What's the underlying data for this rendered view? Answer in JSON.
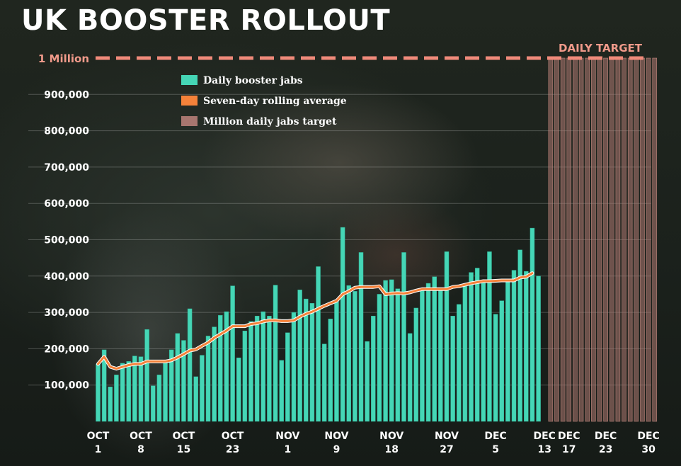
{
  "title": "UK BOOSTER ROLLOUT",
  "chart_data": {
    "type": "bar",
    "title": "UK BOOSTER ROLLOUT",
    "xlabel": "",
    "ylabel": "",
    "ylim": [
      0,
      1000000
    ],
    "grid": true,
    "legend_placement": "top-left",
    "yticks": [
      100000,
      200000,
      300000,
      400000,
      500000,
      600000,
      700000,
      800000,
      900000
    ],
    "ytick_labels": [
      "100,000",
      "200,000",
      "300,000",
      "400,000",
      "500,000",
      "600,000",
      "700,000",
      "800,000",
      "900,000"
    ],
    "xticks": [
      {
        "day": 1,
        "line1": "OCT",
        "line2": "1"
      },
      {
        "day": 8,
        "line1": "OCT",
        "line2": "8"
      },
      {
        "day": 15,
        "line1": "OCT",
        "line2": "15"
      },
      {
        "day": 23,
        "line1": "OCT",
        "line2": "23"
      },
      {
        "day": 32,
        "line1": "NOV",
        "line2": "1"
      },
      {
        "day": 40,
        "line1": "NOV",
        "line2": "9"
      },
      {
        "day": 49,
        "line1": "NOV",
        "line2": "18"
      },
      {
        "day": 58,
        "line1": "NOV",
        "line2": "27"
      },
      {
        "day": 66,
        "line1": "DEC",
        "line2": "5"
      },
      {
        "day": 74,
        "line1": "DEC",
        "line2": "13"
      },
      {
        "day": 78,
        "line1": "DEC",
        "line2": "17"
      },
      {
        "day": 84,
        "line1": "DEC",
        "line2": "23"
      },
      {
        "day": 91,
        "line1": "DEC",
        "line2": "30"
      }
    ],
    "target": {
      "value": 1000000,
      "label": "1 Million",
      "annotation": "DAILY TARGET",
      "from_day": 75,
      "to_day": 92
    },
    "legend": [
      {
        "label": "Daily booster jabs",
        "color": "#45d6b6"
      },
      {
        "label": "Seven-day rolling average",
        "color": "#f5823a"
      },
      {
        "label": "Million daily jabs target",
        "color": "#a8766f"
      }
    ],
    "series": [
      {
        "name": "Daily booster jabs",
        "start_day": 1,
        "values": [
          158000,
          197000,
          95000,
          128000,
          160000,
          165000,
          180000,
          178000,
          253000,
          98000,
          128000,
          165000,
          197000,
          242000,
          223000,
          310000,
          123000,
          182000,
          235000,
          260000,
          292000,
          302000,
          373000,
          175000,
          249000,
          275000,
          290000,
          302000,
          290000,
          375000,
          168000,
          244000,
          300000,
          362000,
          337000,
          325000,
          426000,
          213000,
          282000,
          334000,
          534000,
          374000,
          358000,
          465000,
          220000,
          290000,
          350000,
          388000,
          390000,
          365000,
          465000,
          242000,
          312000,
          360000,
          380000,
          398000,
          360000,
          467000,
          290000,
          322000,
          372000,
          410000,
          422000,
          388000,
          467000,
          295000,
          332000,
          388000,
          416000,
          472000,
          413000,
          532000,
          400000
        ]
      },
      {
        "name": "Seven-day rolling average",
        "start_day": 1,
        "values": [
          158000,
          178000,
          150000,
          145000,
          150000,
          155000,
          158000,
          158000,
          165000,
          165000,
          165000,
          165000,
          168000,
          176000,
          185000,
          195000,
          198000,
          208000,
          217000,
          230000,
          240000,
          250000,
          262000,
          262000,
          262000,
          268000,
          270000,
          275000,
          278000,
          278000,
          276000,
          276000,
          278000,
          288000,
          296000,
          302000,
          310000,
          318000,
          325000,
          332000,
          350000,
          358000,
          368000,
          370000,
          370000,
          370000,
          372000,
          350000,
          352000,
          353000,
          352000,
          355000,
          360000,
          364000,
          364000,
          364000,
          364000,
          364000,
          370000,
          372000,
          376000,
          380000,
          383000,
          386000,
          386000,
          387000,
          388000,
          388000,
          388000,
          396000,
          398000,
          408000
        ]
      }
    ]
  }
}
